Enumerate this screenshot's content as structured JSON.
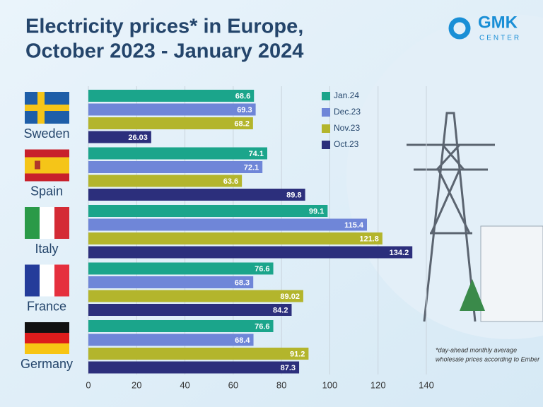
{
  "logo": {
    "name": "GMK",
    "tagline": "CENTER"
  },
  "chart_data": {
    "type": "bar",
    "orientation": "horizontal",
    "title": [
      "Electricity prices* in Europe,",
      "October 2023 - January 2024"
    ],
    "note": [
      "*day-ahead monthly average",
      "wholesale prices according to Ember"
    ],
    "categories": [
      "Sweden",
      "Spain",
      "Italy",
      "France",
      "Germany"
    ],
    "series": [
      {
        "name": "Jan.24",
        "color": "#1ba58b",
        "values": [
          68.6,
          74.1,
          99.1,
          76.6,
          76.6
        ]
      },
      {
        "name": "Dec.23",
        "color": "#6f86d8",
        "values": [
          69.3,
          72.1,
          115.4,
          68.3,
          68.4
        ]
      },
      {
        "name": "Nov.23",
        "color": "#b3b52c",
        "values": [
          68.2,
          63.6,
          121.8,
          89.02,
          91.2
        ]
      },
      {
        "name": "Oct.23",
        "color": "#2c2f7c",
        "values": [
          26.03,
          89.8,
          134.2,
          84.2,
          87.3
        ]
      }
    ],
    "xlim": [
      0,
      140
    ],
    "xticks": [
      0,
      20,
      40,
      60,
      80,
      100,
      120,
      140
    ],
    "grid": true,
    "legend": "top-right"
  }
}
